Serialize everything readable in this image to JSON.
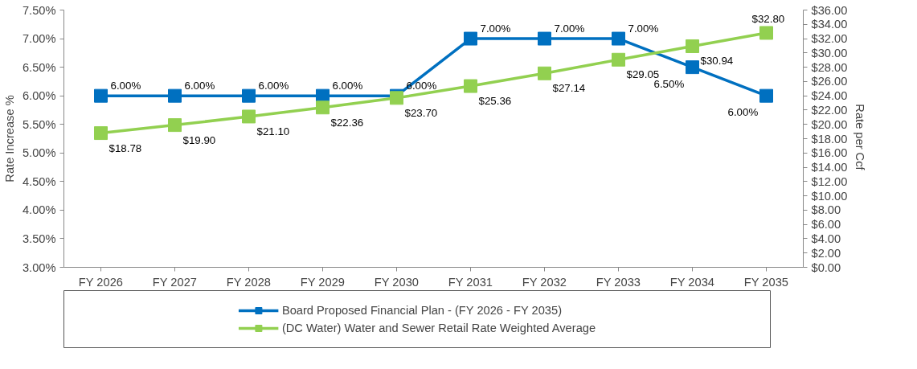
{
  "chart_data": {
    "type": "line",
    "ylabel": "Rate Increase %",
    "y2label": "Rate  per Ccf",
    "categories": [
      "FY 2026",
      "FY 2027",
      "FY 2028",
      "FY 2029",
      "FY 2030",
      "FY 2031",
      "FY 2032",
      "FY 2033",
      "FY 2034",
      "FY 2035"
    ],
    "series": [
      {
        "name": "Board Proposed Financial Plan - (FY 2026 - FY 2035)",
        "color": "#0070c0",
        "values": [
          6.0,
          6.0,
          6.0,
          6.0,
          6.0,
          7.0,
          7.0,
          7.0,
          6.5,
          6.0
        ],
        "value_labels": [
          "6.00%",
          "6.00%",
          "6.00%",
          "6.00%",
          "6.00%",
          "7.00%",
          "7.00%",
          "7.00%",
          "6.50%",
          "6.00%"
        ]
      },
      {
        "name": "(DC Water) Water and Sewer Retail Rate Weighted Average",
        "color": "#92d050",
        "axis": "y2",
        "values": [
          18.78,
          19.9,
          21.1,
          22.36,
          23.7,
          25.36,
          27.14,
          29.05,
          30.94,
          32.8
        ],
        "value_labels": [
          "$18.78",
          "$19.90",
          "$21.10",
          "$22.36",
          "$23.70",
          "$25.36",
          "$27.14",
          "$29.05",
          "$30.94",
          "$32.80"
        ]
      }
    ],
    "ylim": [
      3.0,
      7.5
    ],
    "yticks": [
      {
        "value": 3.0,
        "label": "3.00%"
      },
      {
        "value": 3.5,
        "label": "3.50%"
      },
      {
        "value": 4.0,
        "label": "4.00%"
      },
      {
        "value": 4.5,
        "label": "4.50%"
      },
      {
        "value": 5.0,
        "label": "5.00%"
      },
      {
        "value": 5.5,
        "label": "5.50%"
      },
      {
        "value": 6.0,
        "label": "6.00%"
      },
      {
        "value": 6.5,
        "label": "6.50%"
      },
      {
        "value": 7.0,
        "label": "7.00%"
      },
      {
        "value": 7.5,
        "label": "7.50%"
      }
    ],
    "y2lim": [
      0,
      36
    ],
    "y2ticks": [
      {
        "value": 0,
        "label": "$0.00"
      },
      {
        "value": 2,
        "label": "$2.00"
      },
      {
        "value": 4,
        "label": "$4.00"
      },
      {
        "value": 6,
        "label": "$6.00"
      },
      {
        "value": 8,
        "label": "$8.00"
      },
      {
        "value": 10,
        "label": "$10.00"
      },
      {
        "value": 12,
        "label": "$12.00"
      },
      {
        "value": 14,
        "label": "$14.00"
      },
      {
        "value": 16,
        "label": "$16.00"
      },
      {
        "value": 18,
        "label": "$18.00"
      },
      {
        "value": 20,
        "label": "$20.00"
      },
      {
        "value": 22,
        "label": "$22.00"
      },
      {
        "value": 24,
        "label": "$24.00"
      },
      {
        "value": 26,
        "label": "$26.00"
      },
      {
        "value": 28,
        "label": "$28.00"
      },
      {
        "value": 30,
        "label": "$30.00"
      },
      {
        "value": 32,
        "label": "$32.00"
      },
      {
        "value": 34,
        "label": "$34.00"
      },
      {
        "value": 36,
        "label": "$36.00"
      }
    ],
    "marker": "square",
    "line_style": "solid",
    "grid": false,
    "legend": "bottom"
  }
}
